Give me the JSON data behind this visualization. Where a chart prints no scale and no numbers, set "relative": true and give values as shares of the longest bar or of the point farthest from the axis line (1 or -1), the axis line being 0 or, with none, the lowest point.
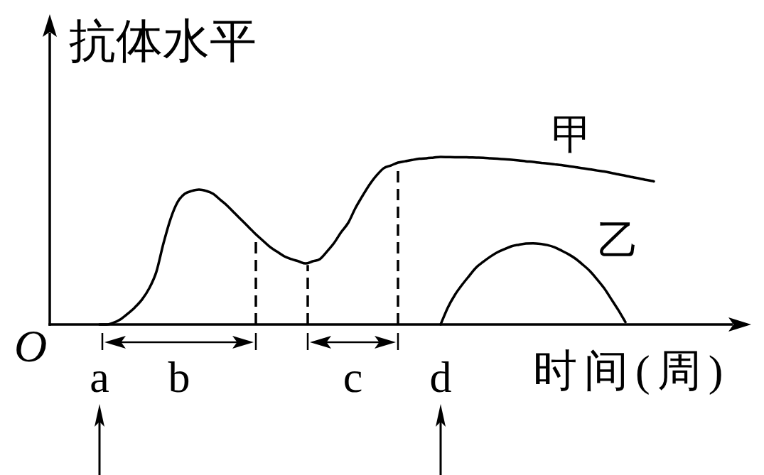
{
  "chart_data": {
    "type": "line",
    "relative": true,
    "ylabel": "抗体水平",
    "xlabel": "时间(周)",
    "annotations": [
      "O",
      "b",
      "c"
    ],
    "categories": [
      "a",
      null,
      null,
      null,
      null,
      null,
      null,
      null,
      null,
      null,
      null,
      null,
      null,
      null,
      null,
      null,
      null,
      null,
      null,
      null,
      null,
      null,
      null,
      null,
      null,
      null,
      null,
      null,
      null,
      null,
      null,
      null,
      null,
      null,
      null,
      null,
      null,
      null,
      null,
      null,
      null,
      null,
      null,
      null,
      null,
      null,
      null,
      null,
      "d",
      null,
      null,
      null,
      null,
      null,
      null,
      null,
      null,
      null,
      null,
      null,
      null,
      null,
      null,
      null,
      null,
      null,
      null,
      null,
      null,
      null,
      null,
      null,
      null,
      null,
      null,
      null,
      null,
      null,
      null
    ],
    "series": [
      {
        "name": "甲",
        "color": "#000000",
        "values": [
          0,
          0,
          0.011,
          0.032,
          0.065,
          0.103,
          0.15,
          0.216,
          0.314,
          0.484,
          0.63,
          0.731,
          0.78,
          0.797,
          0.805,
          0.797,
          0.78,
          0.744,
          0.708,
          0.665,
          0.623,
          0.581,
          0.538,
          0.5,
          0.462,
          0.434,
          0.407,
          0.39,
          0.377,
          0.364,
          0.377,
          0.39,
          0.435,
          0.486,
          0.551,
          0.607,
          0.694,
          0.767,
          0.835,
          0.89,
          0.933,
          0.949,
          0.966,
          0.974,
          0.982,
          0.989,
          0.992,
          0.996,
          1.0,
          0.999,
          0.998,
          0.998,
          0.997,
          0.996,
          0.995,
          0.992,
          0.989,
          0.986,
          0.983,
          0.979,
          0.974,
          0.97,
          0.965,
          0.961,
          0.956,
          0.951,
          0.945,
          0.939,
          0.932,
          0.926,
          0.919,
          0.913,
          0.905,
          0.896,
          0.888,
          0.879,
          0.871,
          0.862,
          0.854
        ]
      },
      {
        "name": "乙",
        "color": "#000000",
        "values": [
          null,
          null,
          null,
          null,
          null,
          null,
          null,
          null,
          null,
          null,
          null,
          null,
          null,
          null,
          null,
          null,
          null,
          null,
          null,
          null,
          null,
          null,
          null,
          null,
          null,
          null,
          null,
          null,
          null,
          null,
          null,
          null,
          null,
          null,
          null,
          null,
          null,
          null,
          null,
          null,
          null,
          null,
          null,
          null,
          null,
          null,
          null,
          null,
          0,
          0.1,
          0.176,
          0.236,
          0.289,
          0.34,
          0.374,
          0.405,
          0.431,
          0.45,
          0.467,
          0.476,
          0.483,
          0.484,
          0.481,
          0.474,
          0.461,
          0.441,
          0.419,
          0.392,
          0.357,
          0.319,
          0.27,
          0.217,
          0.152,
          0.086,
          0.014,
          null,
          null,
          null,
          null
        ]
      }
    ]
  }
}
